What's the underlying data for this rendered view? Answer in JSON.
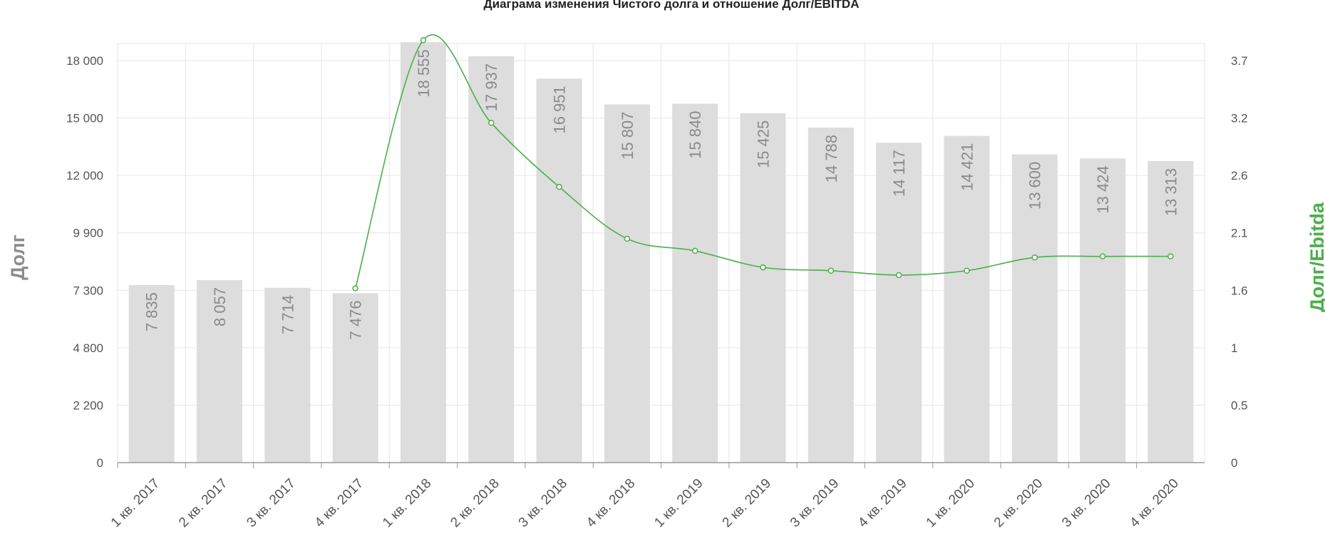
{
  "chart_data": {
    "type": "bar",
    "title": "Диаграма изменения Чистого долга и отношение Долг/EBITDA",
    "categories": [
      "1 кв. 2017",
      "2 кв. 2017",
      "3 кв. 2017",
      "4 кв. 2017",
      "1 кв. 2018",
      "2 кв. 2018",
      "3 кв. 2018",
      "4 кв. 2018",
      "1 кв. 2019",
      "2 кв. 2019",
      "3 кв. 2019",
      "4 кв. 2019",
      "1 кв. 2020",
      "2 кв. 2020",
      "3 кв. 2020",
      "4 кв. 2020"
    ],
    "series": [
      {
        "name": "Долг",
        "type": "bar",
        "axis": "left",
        "color": "#dddddd",
        "values": [
          7835,
          8057,
          7714,
          7476,
          18555,
          17937,
          16951,
          15807,
          15840,
          15425,
          14788,
          14117,
          14421,
          13600,
          13424,
          13313
        ],
        "labels": [
          "7 835",
          "8 057",
          "7 714",
          "7 476",
          "18 555",
          "17 937",
          "16 951",
          "15 807",
          "15 840",
          "15 425",
          "14 788",
          "14 117",
          "14 421",
          "13 600",
          "13 424",
          "13 313"
        ]
      },
      {
        "name": "Долг/Ebitda",
        "type": "line",
        "axis": "right",
        "color": "#4cae4c",
        "values": [
          null,
          null,
          null,
          1.58,
          3.83,
          3.08,
          2.5,
          2.03,
          1.92,
          1.77,
          1.74,
          1.7,
          1.74,
          1.86,
          1.87,
          1.87
        ]
      }
    ],
    "ylabel": "Долг",
    "y2label": "Долг/Ebitda",
    "yticks": [
      "0",
      "2 200",
      "4 800",
      "7 300",
      "9 900",
      "12 000",
      "15 000",
      "18 000"
    ],
    "y2ticks": [
      "0",
      "0.5",
      "1",
      "1.6",
      "2.1",
      "2.6",
      "3.2",
      "3.7"
    ],
    "ylim": [
      0,
      18500
    ],
    "y2lim": [
      0,
      3.8
    ],
    "grid": true,
    "legend": "none"
  }
}
